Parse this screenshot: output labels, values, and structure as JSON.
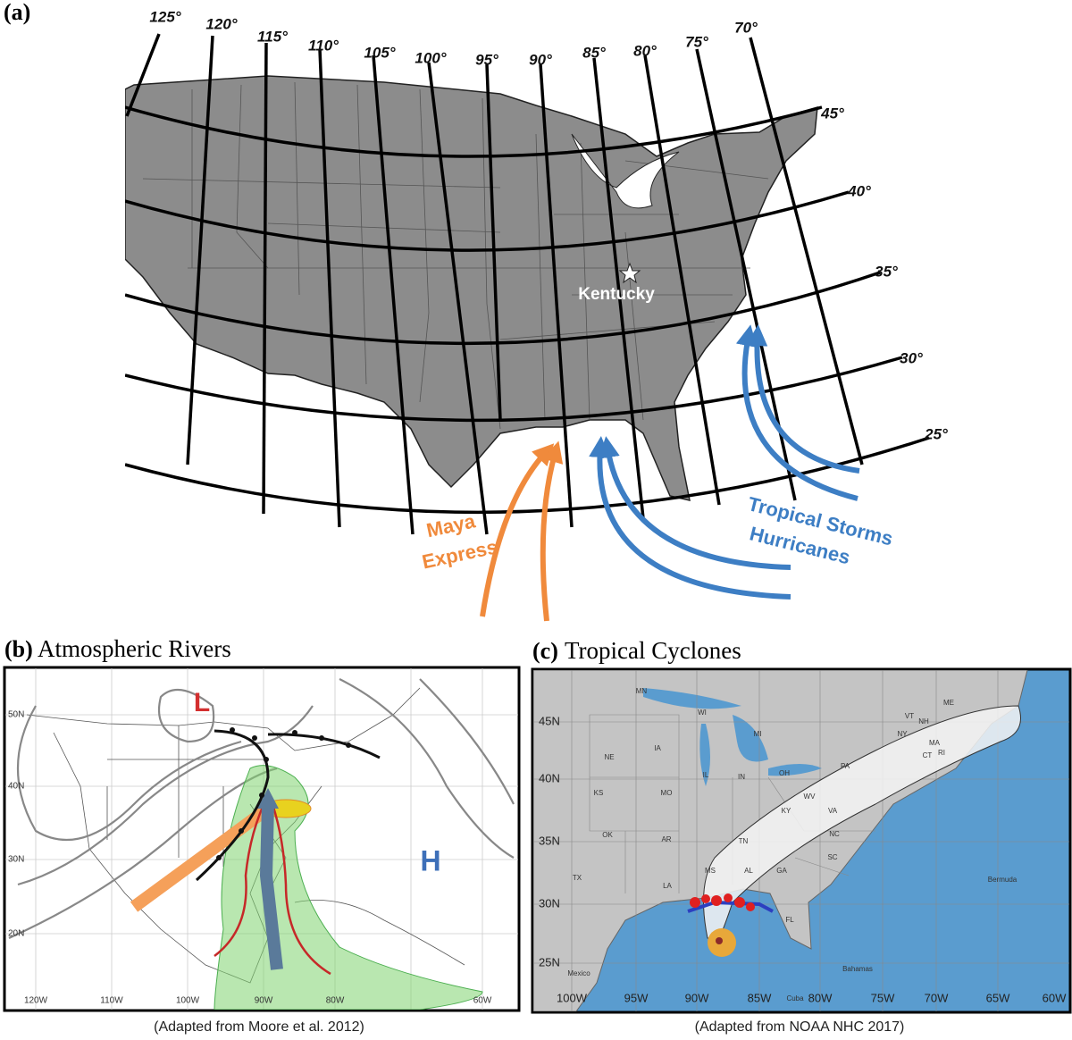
{
  "panel_a": {
    "label": "(a)",
    "longitudes": [
      "125°",
      "120°",
      "115°",
      "110°",
      "105°",
      "100°",
      "95°",
      "90°",
      "85°",
      "80°",
      "75°",
      "70°"
    ],
    "latitudes": [
      "45°",
      "40°",
      "35°",
      "30°",
      "25°"
    ],
    "kentucky": "Kentucky",
    "maya_express": [
      "Maya",
      "Express"
    ],
    "tropical_storms": "Tropical Storms",
    "hurricanes": "Hurricanes"
  },
  "panel_b": {
    "label": "(b)",
    "title": "Atmospheric Rivers",
    "low": "L",
    "high": "H",
    "lat_labels": [
      "50N",
      "40N",
      "30N",
      "20N"
    ],
    "lon_labels": [
      "120W",
      "110W",
      "100W",
      "90W",
      "80W",
      "60W"
    ],
    "caption": "(Adapted from Moore et al. 2012)"
  },
  "panel_c": {
    "label": "(c)",
    "title": "Tropical Cyclones",
    "lat_labels": [
      "45N",
      "40N",
      "35N",
      "30N",
      "25N"
    ],
    "lon_labels": [
      "100W",
      "95W",
      "90W",
      "85W",
      "80W",
      "75W",
      "70W",
      "65W",
      "60W"
    ],
    "states": [
      "MN",
      "WI",
      "MI",
      "IA",
      "NE",
      "KS",
      "MO",
      "IL",
      "IN",
      "OH",
      "PA",
      "NY",
      "VT",
      "NH",
      "ME",
      "MA",
      "CT",
      "RI",
      "KY",
      "WV",
      "VA",
      "OK",
      "AR",
      "TN",
      "NC",
      "SC",
      "TX",
      "LA",
      "MS",
      "AL",
      "GA",
      "FL"
    ],
    "places": [
      "Bermuda",
      "Mexico",
      "Bahamas",
      "Cuba"
    ],
    "caption": "(Adapted from NOAA NHC 2017)"
  }
}
